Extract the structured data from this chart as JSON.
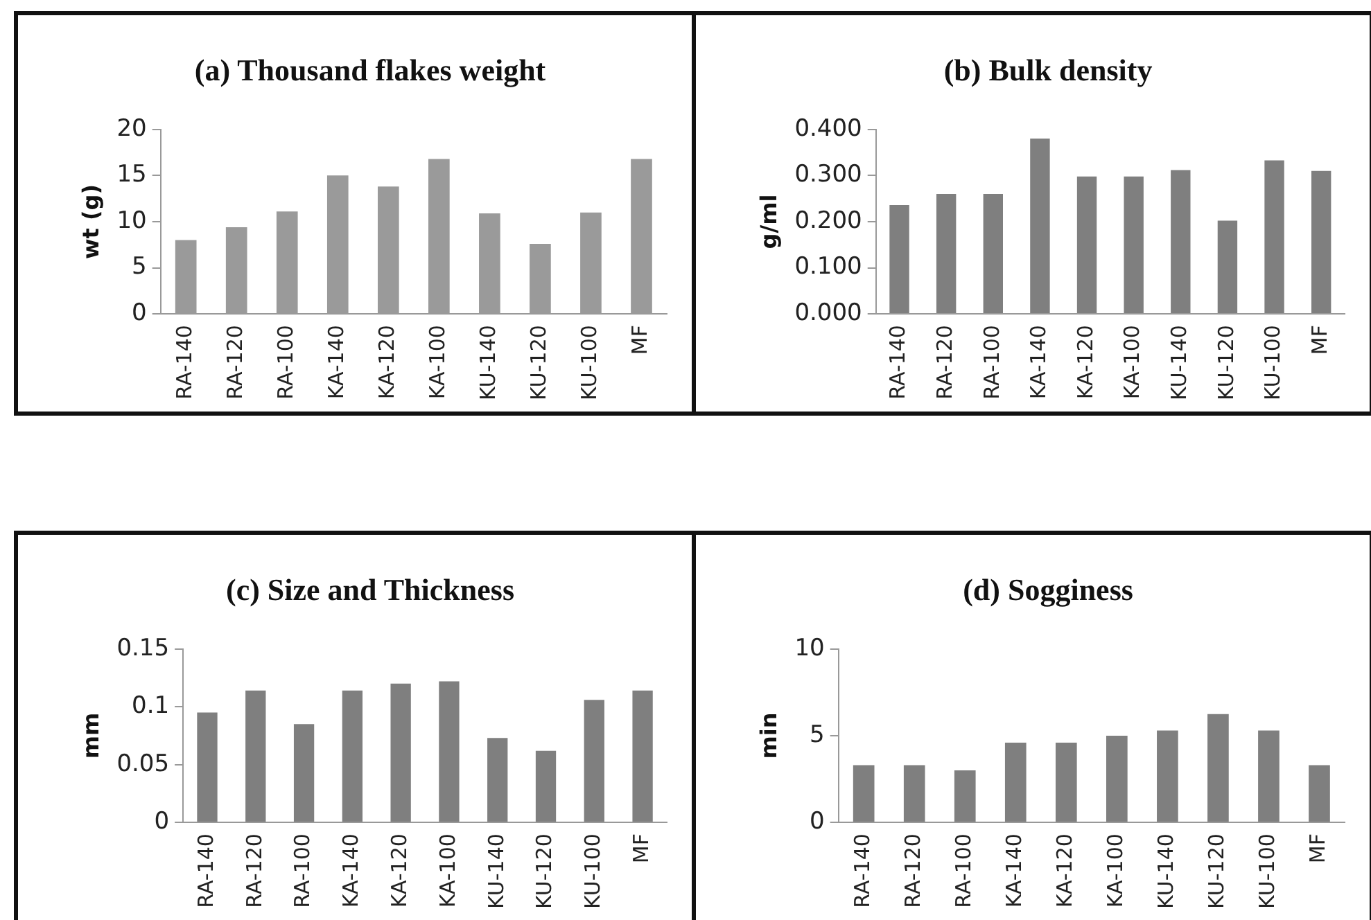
{
  "chart_data": [
    {
      "type": "bar",
      "title": "(a) Thousand flakes weight",
      "ylabel": "wt (g)",
      "categories": [
        "RA-140",
        "RA-120",
        "RA-100",
        "KA-140",
        "KA-120",
        "KA-100",
        "KU-140",
        "KU-120",
        "KU-100",
        "MF"
      ],
      "values": [
        8.0,
        9.4,
        11.1,
        15.0,
        13.8,
        16.8,
        10.9,
        7.6,
        11.0,
        16.8
      ],
      "color": "#9a9a9a",
      "ylim": [
        0,
        20
      ],
      "yticks": [
        0,
        5,
        10,
        15,
        20
      ],
      "grid": false,
      "legend": false
    },
    {
      "type": "bar",
      "title": "(b) Bulk density",
      "ylabel": "g/ml",
      "categories": [
        "RA-140",
        "RA-120",
        "RA-100",
        "KA-140",
        "KA-120",
        "KA-100",
        "KU-140",
        "KU-120",
        "KU-100",
        "MF"
      ],
      "values": [
        0.236,
        0.26,
        0.26,
        0.38,
        0.298,
        0.298,
        0.312,
        0.202,
        0.333,
        0.31
      ],
      "color": "#7f7f7f",
      "ylim": [
        0,
        0.4
      ],
      "yticks": [
        {
          "value": 0,
          "label": "0.000"
        },
        {
          "value": 0.1,
          "label": "0.100"
        },
        {
          "value": 0.2,
          "label": "0.200"
        },
        {
          "value": 0.3,
          "label": "0.300"
        },
        {
          "value": 0.4,
          "label": "0.400"
        }
      ],
      "grid": false,
      "legend": false
    },
    {
      "type": "bar",
      "title": "(c) Size and Thickness",
      "ylabel": "mm",
      "categories": [
        "RA-140",
        "RA-120",
        "RA-100",
        "KA-140",
        "KA-120",
        "KA-100",
        "KU-140",
        "KU-120",
        "KU-100",
        "MF"
      ],
      "values": [
        0.095,
        0.114,
        0.085,
        0.114,
        0.12,
        0.122,
        0.073,
        0.062,
        0.106,
        0.114
      ],
      "color": "#7f7f7f",
      "ylim": [
        0,
        0.15
      ],
      "yticks": [
        0,
        0.05,
        0.1,
        0.15
      ],
      "grid": false,
      "legend": false
    },
    {
      "type": "bar",
      "title": "(d) Sogginess",
      "ylabel": "min",
      "categories": [
        "RA-140",
        "RA-120",
        "RA-100",
        "KA-140",
        "KA-120",
        "KA-100",
        "KU-140",
        "KU-120",
        "KU-100",
        "MF"
      ],
      "values": [
        3.3,
        3.3,
        3.0,
        4.6,
        4.6,
        5.0,
        5.3,
        6.25,
        5.3,
        3.3
      ],
      "color": "#7f7f7f",
      "ylim": [
        0,
        10
      ],
      "yticks": [
        0,
        5,
        10
      ],
      "grid": false,
      "legend": false
    }
  ]
}
